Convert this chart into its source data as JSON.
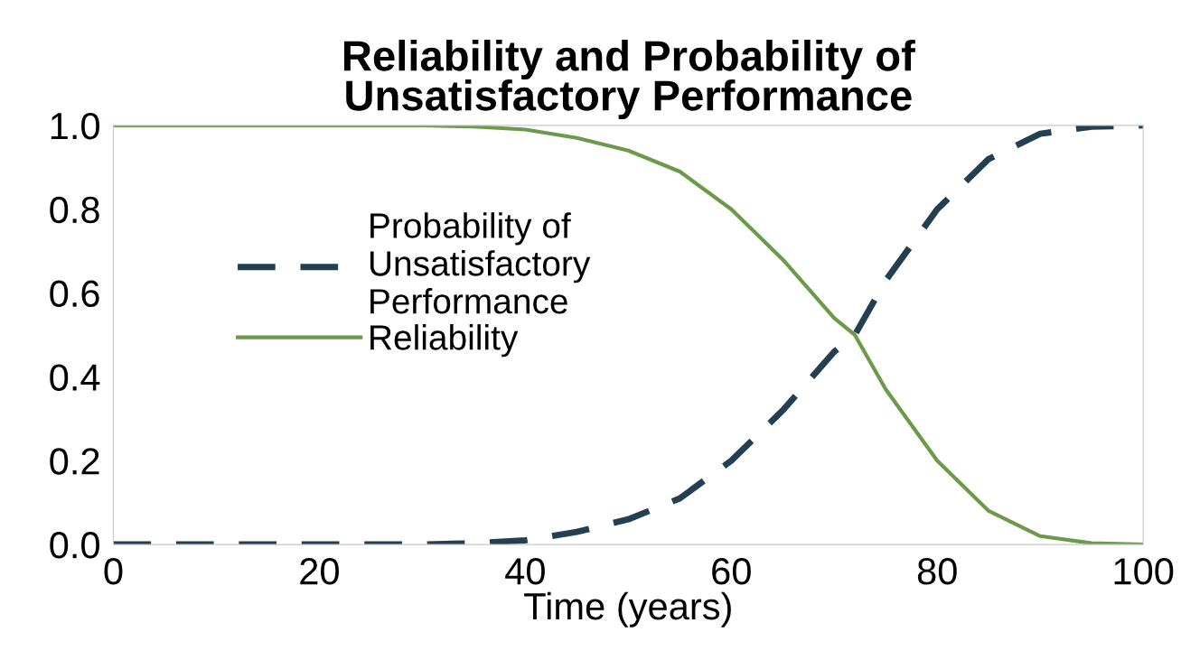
{
  "chart_data": {
    "type": "line",
    "title": "Reliability and Probability of\nUnsatisfactory Performance",
    "xlabel": "Time (years)",
    "x": [
      0,
      5,
      10,
      15,
      20,
      25,
      30,
      35,
      40,
      45,
      50,
      55,
      60,
      65,
      70,
      72,
      75,
      80,
      85,
      90,
      95,
      100
    ],
    "series": [
      {
        "name": "Probability of\nUnsatisfactory\nPerformance",
        "color": "#243f4f",
        "line_style": "dashed",
        "values": [
          0,
          0,
          0,
          0,
          0,
          0,
          0,
          0.003,
          0.01,
          0.03,
          0.06,
          0.11,
          0.2,
          0.32,
          0.46,
          0.5,
          0.63,
          0.8,
          0.92,
          0.98,
          0.997,
          1.0
        ]
      },
      {
        "name": "Reliability",
        "color": "#6a9a4a",
        "line_style": "solid",
        "values": [
          1.0,
          1.0,
          1.0,
          1.0,
          1.0,
          1.0,
          1.0,
          0.997,
          0.99,
          0.97,
          0.94,
          0.89,
          0.8,
          0.68,
          0.54,
          0.5,
          0.37,
          0.2,
          0.08,
          0.02,
          0.003,
          0
        ]
      }
    ],
    "xlim": [
      0,
      100
    ],
    "xticks": [
      0,
      20,
      40,
      60,
      80,
      100
    ],
    "ylim": [
      0,
      1.0
    ],
    "yticks": [
      {
        "value": 0,
        "label": "0.0"
      },
      {
        "value": 0.2,
        "label": "0.2"
      },
      {
        "value": 0.4,
        "label": "0.4"
      },
      {
        "value": 0.6,
        "label": "0.6"
      },
      {
        "value": 0.8,
        "label": "0.8"
      },
      {
        "value": 1.0,
        "label": "1.0"
      }
    ],
    "grid": false,
    "legend": "left",
    "marker": "none"
  }
}
